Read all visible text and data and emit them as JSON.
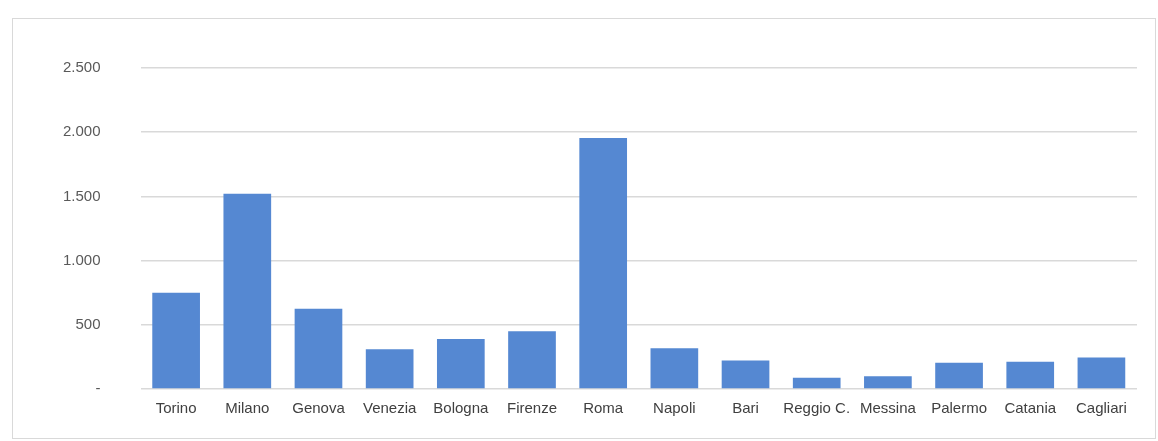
{
  "chart_data": {
    "type": "bar",
    "categories": [
      "Torino",
      "Milano",
      "Genova",
      "Venezia",
      "Bologna",
      "Firenze",
      "Roma",
      "Napoli",
      "Bari",
      "Reggio C.",
      "Messina",
      "Palermo",
      "Catania",
      "Cagliari"
    ],
    "values": [
      750,
      1520,
      625,
      310,
      390,
      450,
      1955,
      318,
      221,
      87,
      100,
      204,
      212,
      246
    ],
    "color": "#5588d2",
    "ylim": [
      0,
      2500
    ],
    "yticks": [
      {
        "value": 0,
        "label": "-"
      },
      {
        "value": 500,
        "label": "500"
      },
      {
        "value": 1000,
        "label": "1.000"
      },
      {
        "value": 1500,
        "label": "1.500"
      },
      {
        "value": 2000,
        "label": "2.000"
      },
      {
        "value": 2500,
        "label": "2.500"
      }
    ],
    "grid": "y"
  }
}
